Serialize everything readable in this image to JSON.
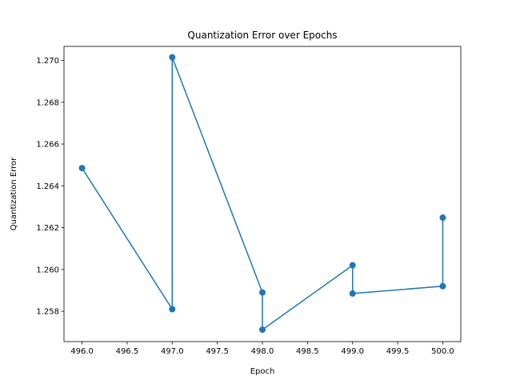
{
  "chart_data": {
    "type": "line",
    "title": "Quantization Error over Epochs",
    "xlabel": "Epoch",
    "ylabel": "Quantization Error",
    "xlim": [
      495.8,
      500.2
    ],
    "ylim": [
      1.25655,
      1.27067
    ],
    "x_ticks": [
      496.0,
      496.5,
      497.0,
      497.5,
      498.0,
      498.5,
      499.0,
      499.5,
      500.0
    ],
    "x_tick_labels": [
      "496.0",
      "496.5",
      "497.0",
      "497.5",
      "498.0",
      "498.5",
      "499.0",
      "499.5",
      "500.0"
    ],
    "y_ticks": [
      1.258,
      1.26,
      1.262,
      1.264,
      1.266,
      1.268,
      1.27
    ],
    "y_tick_labels": [
      "1.258",
      "1.260",
      "1.262",
      "1.264",
      "1.266",
      "1.268",
      "1.270"
    ],
    "grid": false,
    "series": [
      {
        "color": "#1f77b4",
        "marker": "circle",
        "points": [
          {
            "x": 496,
            "y": 1.26485
          },
          {
            "x": 497,
            "y": 1.2581
          },
          {
            "x": 497,
            "y": 1.27015
          },
          {
            "x": 498,
            "y": 1.2589
          },
          {
            "x": 498,
            "y": 1.25712
          },
          {
            "x": 499,
            "y": 1.2602
          },
          {
            "x": 499,
            "y": 1.25885
          },
          {
            "x": 500,
            "y": 1.2592
          },
          {
            "x": 500,
            "y": 1.26248
          }
        ]
      }
    ]
  }
}
